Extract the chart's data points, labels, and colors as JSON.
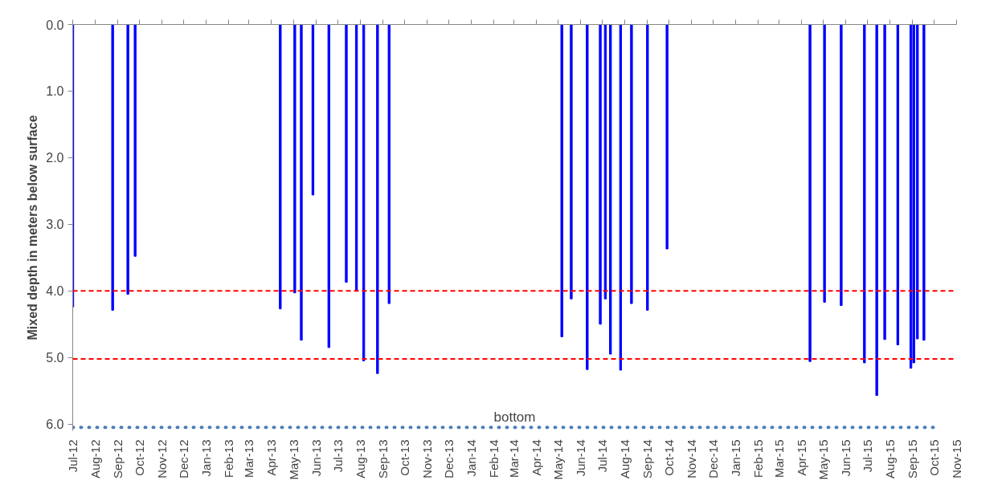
{
  "chart_data": {
    "type": "bar",
    "ylabel": "Mixed depth in meters below surface",
    "series": [
      {
        "color": "#0000ff",
        "x": [
          "2012-07-01",
          "2012-08-25",
          "2012-09-15",
          "2012-09-25",
          "2013-04-13",
          "2013-05-03",
          "2013-05-12",
          "2013-05-28",
          "2013-06-19",
          "2013-07-13",
          "2013-07-27",
          "2013-08-06",
          "2013-08-25",
          "2013-09-10",
          "2014-05-06",
          "2014-05-19",
          "2014-06-10",
          "2014-06-28",
          "2014-07-05",
          "2014-07-12",
          "2014-07-26",
          "2014-08-10",
          "2014-09-01",
          "2014-09-28",
          "2015-04-13",
          "2015-05-03",
          "2015-05-26",
          "2015-06-27",
          "2015-07-14",
          "2015-07-25",
          "2015-08-12",
          "2015-08-30",
          "2015-09-03",
          "2015-09-08",
          "2015-09-17"
        ],
        "values": [
          4.24,
          4.29,
          4.05,
          3.48,
          4.27,
          4.03,
          4.74,
          2.56,
          4.85,
          3.87,
          4.0,
          5.05,
          5.24,
          4.19,
          4.69,
          4.12,
          5.18,
          4.5,
          4.12,
          4.95,
          5.19,
          4.19,
          4.29,
          3.37,
          5.06,
          4.17,
          4.22,
          5.08,
          5.57,
          4.73,
          4.81,
          5.16,
          5.08,
          4.72,
          4.74
        ]
      },
      {
        "type": "line",
        "color": "#4a7ebb",
        "line_style": "dotted",
        "x": [
          "2012-07-01",
          "2015-10-04"
        ],
        "values": [
          6.05,
          6.05
        ]
      }
    ],
    "annotations": [
      "bottom"
    ],
    "ref_lines": [
      {
        "axis": "y",
        "value": 4.0,
        "color": "#ff0000",
        "line_style": "dashed"
      },
      {
        "axis": "y",
        "value": 5.02,
        "color": "#ff0000",
        "line_style": "dashed"
      }
    ],
    "ylim": [
      6.1,
      0
    ],
    "yticks": [
      {
        "value": 0,
        "label": "0.0"
      },
      {
        "value": 1,
        "label": "1.0"
      },
      {
        "value": 2,
        "label": "2.0"
      },
      {
        "value": 3,
        "label": "3.0"
      },
      {
        "value": 4,
        "label": "4.0"
      },
      {
        "value": 5,
        "label": "5.0"
      },
      {
        "value": 6,
        "label": "6.0"
      }
    ],
    "xlim": [
      "2012-07-01",
      "2015-11-01"
    ],
    "xticks": [
      {
        "value": "2012-07-01",
        "label": "Jul-12"
      },
      {
        "value": "2012-08-01",
        "label": "Aug-12"
      },
      {
        "value": "2012-09-01",
        "label": "Sep-12"
      },
      {
        "value": "2012-10-01",
        "label": "Oct-12"
      },
      {
        "value": "2012-11-01",
        "label": "Nov-12"
      },
      {
        "value": "2012-12-01",
        "label": "Dec-12"
      },
      {
        "value": "2013-01-01",
        "label": "Jan-13"
      },
      {
        "value": "2013-02-01",
        "label": "Feb-13"
      },
      {
        "value": "2013-03-01",
        "label": "Mar-13"
      },
      {
        "value": "2013-04-01",
        "label": "Apr-13"
      },
      {
        "value": "2013-05-01",
        "label": "May-13"
      },
      {
        "value": "2013-06-01",
        "label": "Jun-13"
      },
      {
        "value": "2013-07-01",
        "label": "Jul-13"
      },
      {
        "value": "2013-08-01",
        "label": "Aug-13"
      },
      {
        "value": "2013-09-01",
        "label": "Sep-13"
      },
      {
        "value": "2013-10-01",
        "label": "Oct-13"
      },
      {
        "value": "2013-11-01",
        "label": "Nov-13"
      },
      {
        "value": "2013-12-01",
        "label": "Dec-13"
      },
      {
        "value": "2014-01-01",
        "label": "Jan-14"
      },
      {
        "value": "2014-02-01",
        "label": "Feb-14"
      },
      {
        "value": "2014-03-01",
        "label": "Mar-14"
      },
      {
        "value": "2014-04-01",
        "label": "Apr-14"
      },
      {
        "value": "2014-05-01",
        "label": "May-14"
      },
      {
        "value": "2014-06-01",
        "label": "Jun-14"
      },
      {
        "value": "2014-07-01",
        "label": "Jul-14"
      },
      {
        "value": "2014-08-01",
        "label": "Aug-14"
      },
      {
        "value": "2014-09-01",
        "label": "Sep-14"
      },
      {
        "value": "2014-10-01",
        "label": "Oct-14"
      },
      {
        "value": "2014-11-01",
        "label": "Nov-14"
      },
      {
        "value": "2014-12-01",
        "label": "Dec-14"
      },
      {
        "value": "2015-01-01",
        "label": "Jan-15"
      },
      {
        "value": "2015-02-01",
        "label": "Feb-15"
      },
      {
        "value": "2015-03-01",
        "label": "Mar-15"
      },
      {
        "value": "2015-04-01",
        "label": "Apr-15"
      },
      {
        "value": "2015-05-01",
        "label": "May-15"
      },
      {
        "value": "2015-06-01",
        "label": "Jun-15"
      },
      {
        "value": "2015-07-01",
        "label": "Jul-15"
      },
      {
        "value": "2015-08-01",
        "label": "Aug-15"
      },
      {
        "value": "2015-09-01",
        "label": "Sep-15"
      },
      {
        "value": "2015-10-01",
        "label": "Oct-15"
      },
      {
        "value": "2015-11-01",
        "label": "Nov-15"
      }
    ],
    "grid": false
  }
}
